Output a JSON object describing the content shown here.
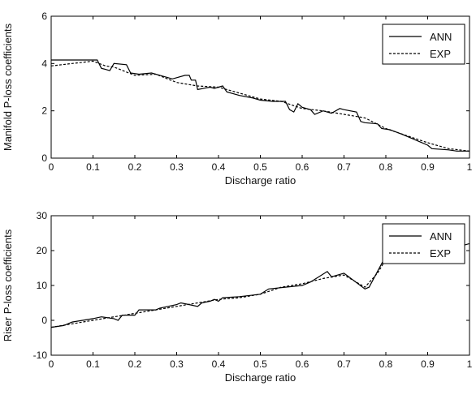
{
  "chart_data": [
    {
      "type": "line",
      "xlabel": "Discharge ratio",
      "ylabel": "Manifold P-loss coefficients",
      "xlim": [
        0,
        1
      ],
      "ylim": [
        0,
        6
      ],
      "xticks": [
        "0",
        "0.1",
        "0.2",
        "0.3",
        "0.4",
        "0.5",
        "0.6",
        "0.7",
        "0.8",
        "0.9",
        "1"
      ],
      "yticks": [
        "0",
        "2",
        "4",
        "6"
      ],
      "grid": false,
      "legend_position": "top-right",
      "series": [
        {
          "name": "ANN",
          "style": "solid",
          "x": [
            0,
            0.1,
            0.11,
            0.12,
            0.13,
            0.14,
            0.15,
            0.18,
            0.19,
            0.21,
            0.24,
            0.26,
            0.29,
            0.32,
            0.33,
            0.335,
            0.345,
            0.35,
            0.38,
            0.39,
            0.41,
            0.42,
            0.45,
            0.48,
            0.5,
            0.53,
            0.56,
            0.57,
            0.58,
            0.59,
            0.6,
            0.62,
            0.63,
            0.65,
            0.67,
            0.69,
            0.7,
            0.73,
            0.74,
            0.75,
            0.78,
            0.79,
            0.81,
            0.84,
            0.86,
            0.88,
            0.9,
            0.91,
            0.95,
            0.97,
            1.0
          ],
          "y": [
            4.15,
            4.15,
            4.15,
            3.8,
            3.75,
            3.7,
            4.0,
            3.95,
            3.6,
            3.55,
            3.6,
            3.5,
            3.35,
            3.5,
            3.5,
            3.3,
            3.3,
            2.9,
            3.0,
            2.95,
            3.05,
            2.8,
            2.65,
            2.55,
            2.45,
            2.4,
            2.4,
            2.05,
            1.95,
            2.3,
            2.15,
            2.05,
            1.85,
            2.0,
            1.9,
            2.1,
            2.05,
            1.95,
            1.55,
            1.5,
            1.45,
            1.25,
            1.2,
            1.0,
            0.85,
            0.7,
            0.55,
            0.4,
            0.35,
            0.3,
            0.3
          ]
        },
        {
          "name": "EXP",
          "style": "dashed",
          "x": [
            0,
            0.05,
            0.1,
            0.13,
            0.15,
            0.2,
            0.25,
            0.3,
            0.35,
            0.4,
            0.45,
            0.5,
            0.55,
            0.6,
            0.65,
            0.7,
            0.75,
            0.8,
            0.85,
            0.9,
            0.95,
            1.0
          ],
          "y": [
            3.9,
            4.0,
            4.1,
            3.9,
            3.85,
            3.5,
            3.55,
            3.2,
            3.05,
            3.0,
            2.75,
            2.5,
            2.4,
            2.1,
            2.0,
            1.85,
            1.7,
            1.25,
            0.95,
            0.65,
            0.4,
            0.3
          ]
        }
      ]
    },
    {
      "type": "line",
      "xlabel": "Discharge ratio",
      "ylabel": "Riser P-loss coefficients",
      "xlim": [
        0,
        1
      ],
      "ylim": [
        -10,
        30
      ],
      "xticks": [
        "0",
        "0.1",
        "0.2",
        "0.3",
        "0.4",
        "0.5",
        "0.6",
        "0.7",
        "0.8",
        "0.9",
        "1"
      ],
      "yticks": [
        "-10",
        "0",
        "10",
        "20",
        "30"
      ],
      "grid": false,
      "legend_position": "top-right",
      "series": [
        {
          "name": "ANN",
          "style": "solid",
          "x": [
            0,
            0.03,
            0.05,
            0.1,
            0.12,
            0.15,
            0.16,
            0.17,
            0.2,
            0.21,
            0.25,
            0.26,
            0.3,
            0.31,
            0.33,
            0.35,
            0.36,
            0.38,
            0.39,
            0.4,
            0.41,
            0.45,
            0.5,
            0.52,
            0.6,
            0.62,
            0.66,
            0.67,
            0.7,
            0.75,
            0.76,
            0.78,
            0.8,
            0.82,
            0.9,
            0.97,
            1.0
          ],
          "y": [
            -2,
            -1.5,
            -0.5,
            0.5,
            1.0,
            0.5,
            0,
            1.5,
            1.5,
            3.0,
            3.0,
            3.5,
            4.5,
            5.0,
            4.5,
            4.0,
            5.0,
            5.5,
            6.0,
            5.5,
            6.5,
            6.8,
            7.5,
            9.0,
            10.0,
            11.0,
            14.0,
            12.5,
            13.5,
            9.0,
            9.5,
            14.0,
            18.5,
            20.0,
            20.5,
            21.0,
            22.0
          ]
        },
        {
          "name": "EXP",
          "style": "dashed",
          "x": [
            0,
            0.05,
            0.1,
            0.15,
            0.2,
            0.25,
            0.3,
            0.35,
            0.4,
            0.45,
            0.5,
            0.55,
            0.6,
            0.65,
            0.7,
            0.75,
            0.78,
            0.8
          ],
          "y": [
            -2,
            -1,
            0,
            1,
            2,
            3,
            4,
            5,
            6,
            6.5,
            7.5,
            9.5,
            10.5,
            12.0,
            13.0,
            9.5,
            13.5,
            17.5
          ]
        }
      ]
    }
  ]
}
